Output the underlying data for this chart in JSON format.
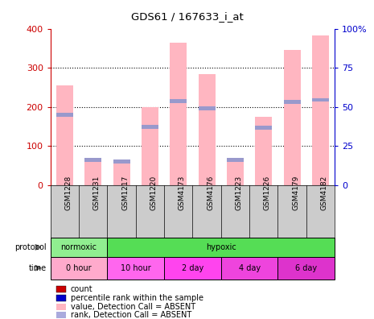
{
  "title": "GDS61 / 167633_i_at",
  "samples": [
    "GSM1228",
    "GSM1231",
    "GSM1217",
    "GSM1220",
    "GSM4173",
    "GSM4176",
    "GSM1223",
    "GSM1226",
    "GSM4179",
    "GSM4182"
  ],
  "bar_values": [
    255,
    70,
    55,
    200,
    365,
    283,
    60,
    175,
    345,
    383
  ],
  "rank_values": [
    180,
    65,
    60,
    148,
    215,
    197,
    65,
    147,
    213,
    218
  ],
  "ylim_left": [
    0,
    400
  ],
  "ylim_right": [
    0,
    100
  ],
  "yticks_left": [
    0,
    100,
    200,
    300,
    400
  ],
  "yticks_right": [
    0,
    25,
    50,
    75,
    100
  ],
  "ytick_labels_right": [
    "0",
    "25",
    "50",
    "75",
    "100%"
  ],
  "bar_color": "#FFB6C1",
  "rank_color": "#9999CC",
  "left_axis_color": "#CC0000",
  "right_axis_color": "#0000CC",
  "protocol_labels": [
    "normoxic",
    "hypoxic"
  ],
  "protocol_colors": [
    "#90EE90",
    "#55DD55"
  ],
  "time_labels": [
    "0 hour",
    "10 hour",
    "2 day",
    "4 day",
    "6 day"
  ],
  "time_colors": [
    "#FFAACC",
    "#FF66EE",
    "#FF44EE",
    "#EE44DD",
    "#DD33CC"
  ],
  "legend_colors": [
    "#CC0000",
    "#0000CC",
    "#FFB6C1",
    "#AAAADD"
  ],
  "legend_labels": [
    "count",
    "percentile rank within the sample",
    "value, Detection Call = ABSENT",
    "rank, Detection Call = ABSENT"
  ]
}
